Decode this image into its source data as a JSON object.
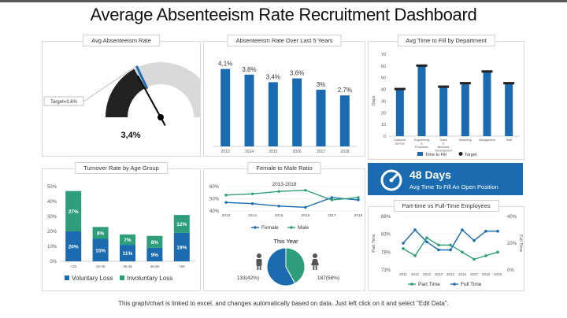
{
  "page": {
    "title": "Average Absenteeism Rate Recruitment Dashboard",
    "footer": "This graph/chart is linked to excel, and changes automatically based on data. Just left click on it and select \"Edit Data\"."
  },
  "panels": {
    "gauge": "Avg Absenteeism Rate",
    "years": "Absenteeism Rate Over Last 5 Years",
    "dept": "Avg Time to Fill by Department",
    "turnover": "Turnover  Rate by Age Group",
    "ratio": "Female to Male Ratio",
    "parttime": "Part-time vs Full-Time Employees"
  },
  "kpi": {
    "value": "48 Days",
    "label": "Avg Time To Fill An Open Position"
  },
  "colors": {
    "blue": "#1a6bb0",
    "green": "#2e9e7a",
    "grey": "#d9d9d9",
    "dark": "#222222"
  },
  "chart_data": [
    {
      "id": "gauge",
      "type": "gauge",
      "value": 3.4,
      "target": 3.6,
      "max": 10,
      "value_label": "3,4%",
      "target_label": "Target=3.6%"
    },
    {
      "id": "years",
      "type": "bar",
      "categories": [
        "2013",
        "2014",
        "2015",
        "2016",
        "2017",
        "2018"
      ],
      "values": [
        4.1,
        3.8,
        3.4,
        3.6,
        3.0,
        2.7
      ],
      "labels": [
        "4,1%",
        "3,8%",
        "3,4%",
        "3,6%",
        "3%",
        "2.7%"
      ],
      "ylim": [
        0,
        5
      ]
    },
    {
      "id": "dept",
      "type": "bar",
      "categories": [
        "Customer Service",
        "Engineering & Production",
        "Sales & Business Development",
        "Marketing",
        "Management",
        "Staff"
      ],
      "values": [
        40,
        60,
        42,
        45,
        55,
        45
      ],
      "target": [
        40,
        60,
        42,
        45,
        55,
        45
      ],
      "ylim": [
        0,
        70
      ],
      "yticks": [
        "0",
        "10",
        "20",
        "30",
        "40",
        "50",
        "60",
        "70"
      ],
      "ylabel": "Days",
      "legend": [
        "Time to Fill",
        "Target"
      ]
    },
    {
      "id": "turnover",
      "type": "stacked-bar",
      "categories": [
        "<25",
        "26-35",
        "36-45",
        "46-55",
        ">55"
      ],
      "series": [
        {
          "name": "Voluntary Loss",
          "values": [
            20,
            15,
            11,
            9,
            19
          ],
          "labels": [
            "20%",
            "15%",
            "11%",
            "9%",
            "19%"
          ]
        },
        {
          "name": "Involuntary Loss",
          "values": [
            27,
            8,
            7,
            8,
            12
          ],
          "labels": [
            "27%",
            "8%",
            "7%",
            "8%",
            "12%"
          ]
        }
      ],
      "ylim": [
        0,
        50
      ],
      "yticks": [
        "0%",
        "10%",
        "20%",
        "30%",
        "40%",
        "50%"
      ]
    },
    {
      "id": "ratio",
      "type": "line",
      "title": "2013-2018",
      "x": [
        "2013",
        "2014",
        "2015",
        "2016",
        "2017",
        "2018"
      ],
      "series": [
        {
          "name": "Female",
          "values": [
            47,
            46,
            44,
            43,
            51,
            49
          ]
        },
        {
          "name": "Male",
          "values": [
            53,
            54,
            56,
            57,
            49,
            51
          ]
        }
      ],
      "ylim": [
        40,
        60
      ],
      "yticks": [
        "40%",
        "50%",
        "60%"
      ]
    },
    {
      "id": "ratio_pie",
      "type": "pie",
      "title": "This Year",
      "slices": [
        {
          "name": "Female",
          "value": 42,
          "label": "133(42%)"
        },
        {
          "name": "Male",
          "value": 58,
          "label": "187(58%)"
        }
      ]
    },
    {
      "id": "parttime",
      "type": "line",
      "x": [
        "2011",
        "2012",
        "2013",
        "2014",
        "2015",
        "2016",
        "2017",
        "2018",
        "2019"
      ],
      "series": [
        {
          "name": "Part Time",
          "axis": "left",
          "values": [
            79,
            77,
            82,
            80,
            80,
            78,
            76,
            77,
            78
          ]
        },
        {
          "name": "Full Time",
          "axis": "right",
          "values": [
            20,
            30,
            21,
            15,
            15,
            30,
            22,
            29,
            29
          ]
        }
      ],
      "ylim_left": [
        73,
        88
      ],
      "yticks_left": [
        "73%",
        "78%",
        "83%",
        "88%"
      ],
      "ylim_right": [
        0,
        40
      ],
      "yticks_right": [
        "0%",
        "20%",
        "40%"
      ],
      "ylabel_left": "Part Time",
      "ylabel_right": "Full Time"
    }
  ]
}
